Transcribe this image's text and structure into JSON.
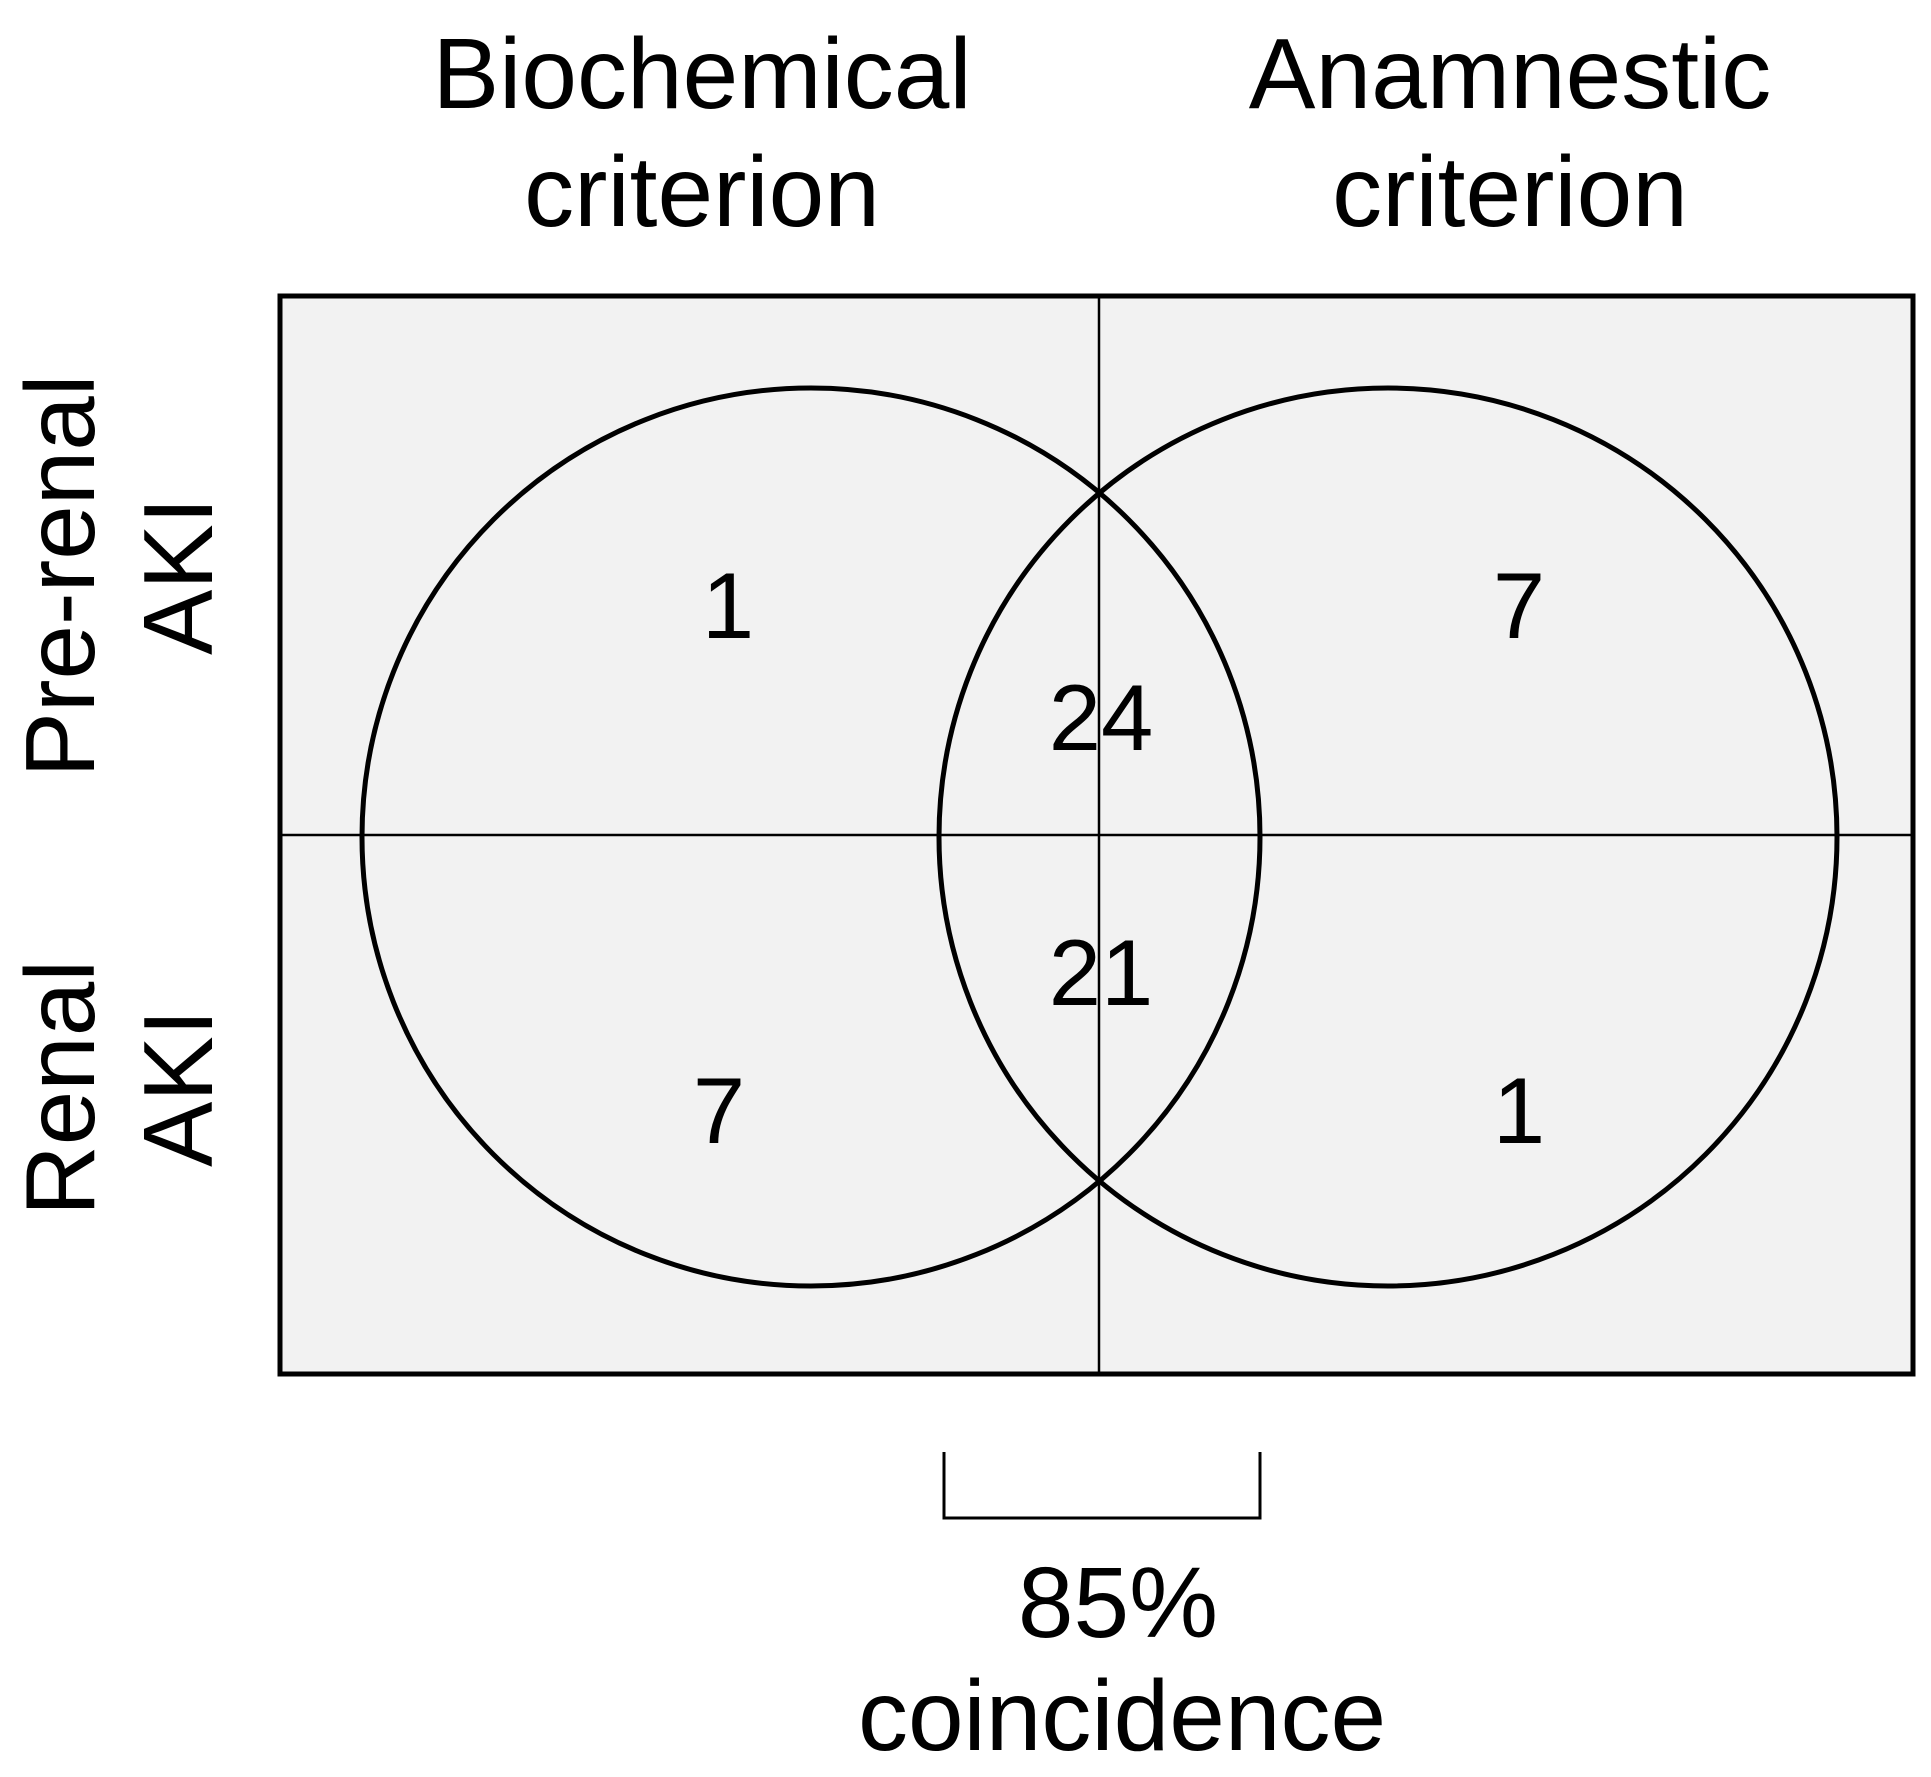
{
  "columns": [
    {
      "line1": "Biochemical",
      "line2": "criterion"
    },
    {
      "line1": "Anamnestic",
      "line2": "criterion"
    }
  ],
  "rows": [
    {
      "line1": "Pre-renal",
      "line2": "AKI"
    },
    {
      "line1": "Renal",
      "line2": "AKI"
    }
  ],
  "counts": {
    "biochemical_only_prerenal": "1",
    "anamnestic_only_prerenal": "7",
    "both_prerenal": "24",
    "both_renal": "21",
    "biochemical_only_renal": "7",
    "anamnestic_only_renal": "1"
  },
  "overlap_label": {
    "line1": "85%",
    "line2": "coincidence"
  },
  "colors": {
    "panel_fill": "#f2f2f2",
    "stroke": "#000000",
    "text": "#000000"
  }
}
